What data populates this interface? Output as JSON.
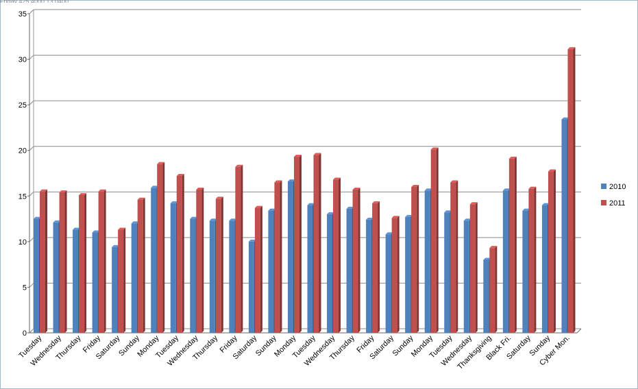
{
  "chart_data": {
    "type": "bar",
    "categories": [
      "Tuesday",
      "Wednesday",
      "Thursday",
      "Friday",
      "Saturday",
      "Sunday",
      "Monday",
      "Tuesday",
      "Wednesday",
      "Thursday",
      "Friday",
      "Saturday",
      "Sunday",
      "Monday",
      "Tuesday",
      "Wednesday",
      "Thursday",
      "Friday",
      "Saturday",
      "Sunday",
      "Monday",
      "Tuesday",
      "Wednesday",
      "Thanksgiving",
      "Black Fri.",
      "Saturday",
      "Sunday",
      "Cyber Mon."
    ],
    "series": [
      {
        "name": "2010",
        "color": "#4f81bd",
        "values": [
          12.5,
          12.1,
          11.3,
          11.0,
          9.4,
          12.0,
          15.9,
          14.2,
          12.5,
          12.3,
          12.3,
          10.0,
          13.4,
          16.6,
          14.0,
          13.0,
          13.6,
          12.4,
          10.8,
          12.7,
          15.6,
          13.2,
          12.3,
          8.0,
          15.6,
          13.4,
          14.0,
          23.4
        ]
      },
      {
        "name": "2011",
        "color": "#c0504d",
        "values": [
          15.5,
          15.4,
          15.1,
          15.5,
          11.3,
          14.6,
          18.5,
          17.2,
          15.7,
          14.7,
          18.2,
          13.7,
          16.5,
          19.3,
          19.5,
          16.8,
          15.7,
          14.2,
          12.6,
          16.0,
          20.1,
          16.5,
          14.1,
          9.3,
          19.1,
          15.8,
          17.7,
          31.1
        ]
      }
    ],
    "ylim": [
      0,
      35
    ],
    "yticks": [
      "0",
      "5",
      "10",
      "15",
      "20",
      "25",
      "30",
      "35"
    ],
    "grid": true,
    "legend": "right",
    "title": "",
    "xlabel": "",
    "ylabel": ""
  },
  "top_strip_text": "Friday   425   4000   13.0400"
}
